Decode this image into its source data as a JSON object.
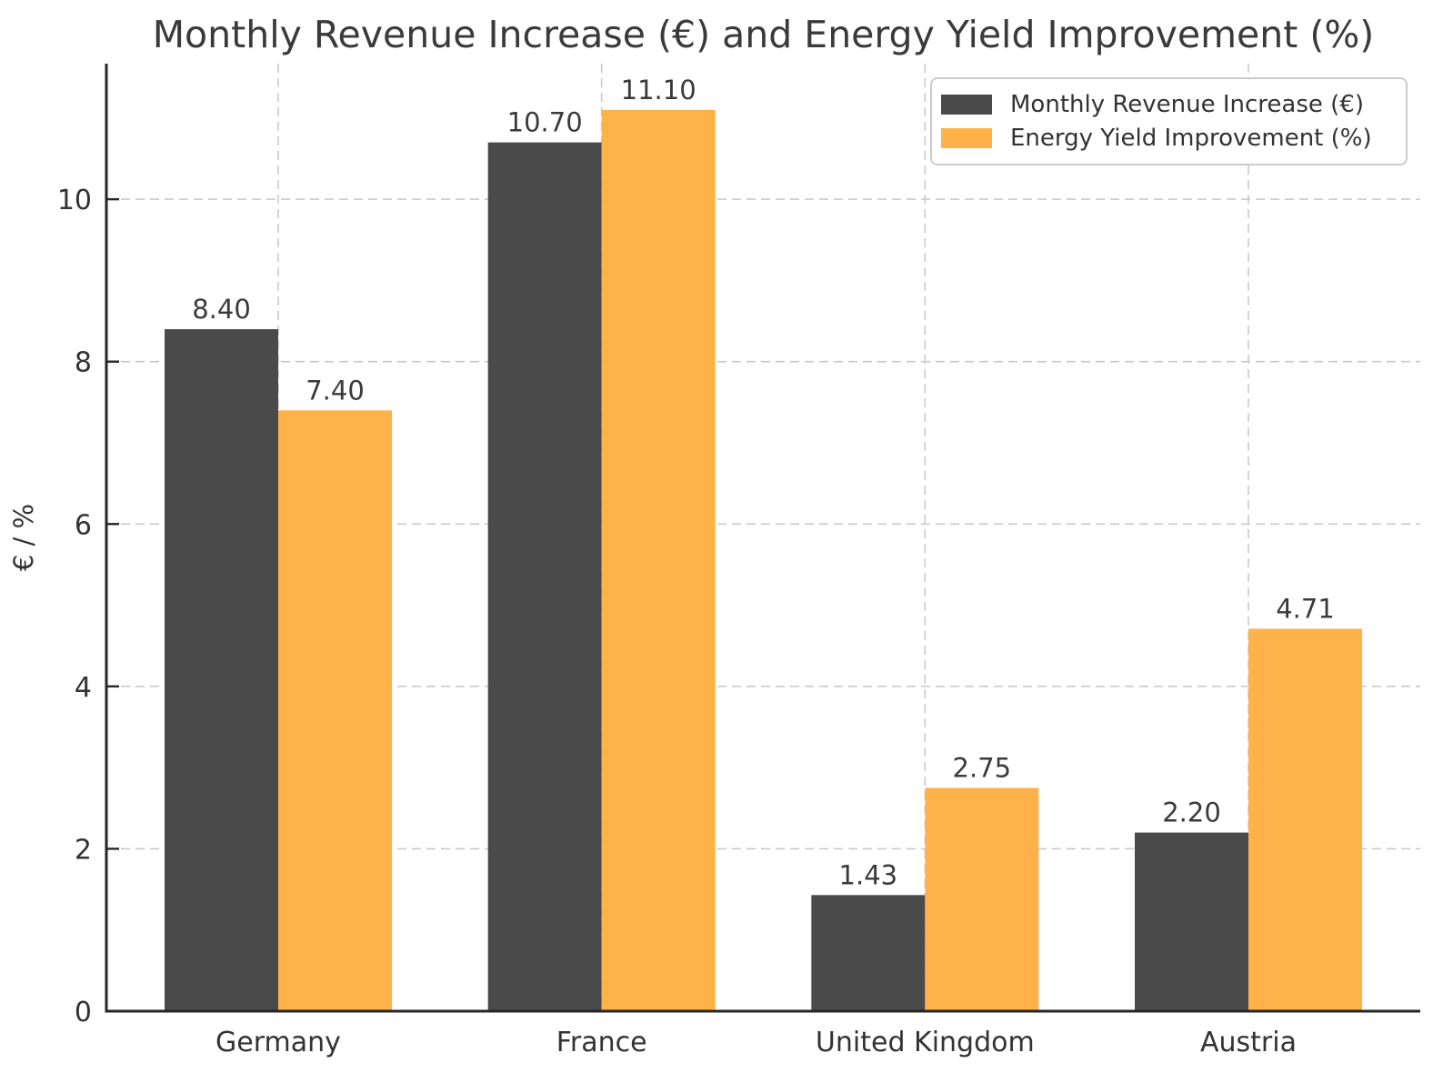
{
  "chart_data": {
    "type": "bar",
    "title": "Monthly Revenue Increase (€) and Energy Yield Improvement (%)",
    "xlabel": "",
    "ylabel": "€ / %",
    "categories": [
      "Germany",
      "France",
      "United Kingdom",
      "Austria"
    ],
    "series": [
      {
        "name": "Monthly Revenue Increase (€)",
        "color": "#4a4a4a",
        "values": [
          8.4,
          10.7,
          1.43,
          2.2
        ],
        "value_labels": [
          "8.40",
          "10.70",
          "1.43",
          "2.20"
        ]
      },
      {
        "name": "Energy Yield Improvement (%)",
        "color": "#ffb14a",
        "values": [
          7.4,
          11.1,
          2.75,
          4.71
        ],
        "value_labels": [
          "7.40",
          "11.10",
          "2.75",
          "4.71"
        ]
      }
    ],
    "yticks": [
      0,
      2,
      4,
      6,
      8,
      10
    ],
    "ytick_labels": [
      "0",
      "2",
      "4",
      "6",
      "8",
      "10"
    ],
    "ylim": [
      0,
      11.67
    ],
    "grid": true,
    "grid_style": "dashed",
    "legend_position": "upper right",
    "bar_value_label_format": "0.00"
  }
}
